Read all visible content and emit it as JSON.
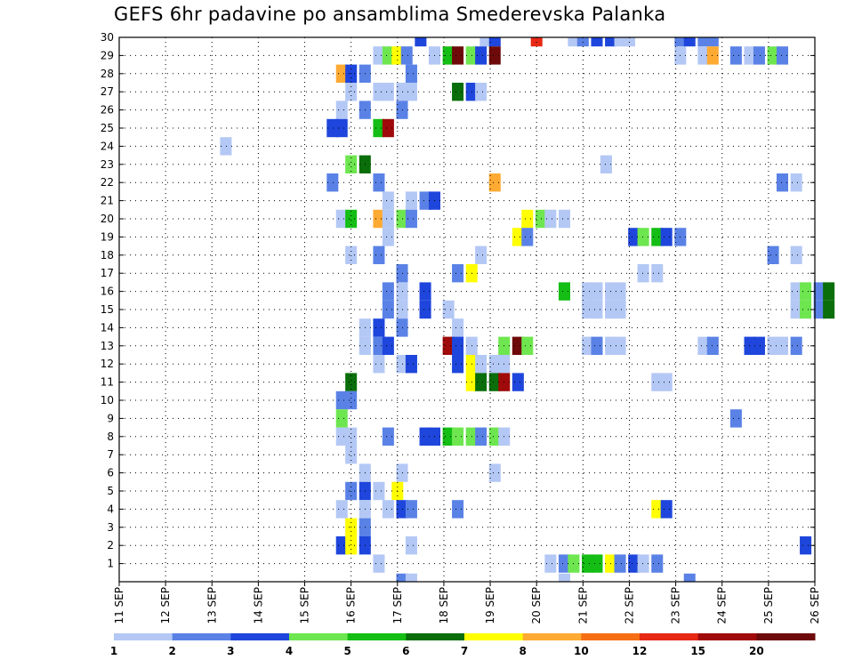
{
  "chart_data": {
    "type": "heatmap",
    "title": "GEFS 6hr padavine po ansamblima Smederevska Palanka",
    "xlabel": "",
    "ylabel": "",
    "x_tick_labels": [
      "11 SEP",
      "12 SEP",
      "13 SEP",
      "14 SEP",
      "15 SEP",
      "16 SEP",
      "17 SEP",
      "18 SEP",
      "19 SEP",
      "20 SEP",
      "21 SEP",
      "22 SEP",
      "23 SEP",
      "24 SEP",
      "25 SEP",
      "26 SEP"
    ],
    "y_tick_labels": [
      "1",
      "2",
      "3",
      "4",
      "5",
      "6",
      "7",
      "8",
      "9",
      "10",
      "11",
      "12",
      "13",
      "14",
      "15",
      "16",
      "17",
      "18",
      "19",
      "20",
      "21",
      "22",
      "23",
      "24",
      "25",
      "26",
      "27",
      "28",
      "29",
      "30"
    ],
    "x_range_days": [
      11,
      26
    ],
    "y_range": [
      0,
      30
    ],
    "grid": "dotted",
    "color_levels": [
      {
        "label": "1",
        "color": "#b4c8f5"
      },
      {
        "label": "2",
        "color": "#5a82e6"
      },
      {
        "label": "3",
        "color": "#1e46dc"
      },
      {
        "label": "4",
        "color": "#6ee650"
      },
      {
        "label": "5",
        "color": "#14be14"
      },
      {
        "label": "6",
        "color": "#0a6e0a"
      },
      {
        "label": "7",
        "color": "#ffff00"
      },
      {
        "label": "8",
        "color": "#ffaa32"
      },
      {
        "label": "10",
        "color": "#f56e14"
      },
      {
        "label": "12",
        "color": "#e62814"
      },
      {
        "label": "15",
        "color": "#a00a0a"
      },
      {
        "label": "20",
        "color": "#6e0a0a"
      }
    ],
    "level_keys": [
      "1",
      "2",
      "3",
      "4",
      "5",
      "6",
      "7",
      "8",
      "10",
      "12",
      "15",
      "20"
    ],
    "cells": [
      [
        30,
        17.5,
        3
      ],
      [
        30,
        18.9,
        1
      ],
      [
        30,
        19.1,
        3
      ],
      [
        30,
        20.0,
        12
      ],
      [
        30,
        20.8,
        1
      ],
      [
        30,
        21.0,
        2
      ],
      [
        30,
        21.3,
        3
      ],
      [
        30,
        21.6,
        3
      ],
      [
        30,
        21.8,
        1
      ],
      [
        30,
        22.0,
        1
      ],
      [
        30,
        23.1,
        2
      ],
      [
        30,
        23.3,
        3
      ],
      [
        30,
        23.6,
        2
      ],
      [
        30,
        23.8,
        2
      ],
      [
        29,
        16.6,
        1
      ],
      [
        29,
        16.8,
        4
      ],
      [
        29,
        17.0,
        7
      ],
      [
        29,
        17.2,
        2
      ],
      [
        29,
        17.8,
        1
      ],
      [
        29,
        18.1,
        5
      ],
      [
        29,
        18.3,
        20
      ],
      [
        29,
        18.6,
        4
      ],
      [
        29,
        18.8,
        3
      ],
      [
        29,
        19.1,
        20
      ],
      [
        29,
        23.1,
        1
      ],
      [
        29,
        23.6,
        1
      ],
      [
        29,
        23.8,
        8
      ],
      [
        29,
        24.3,
        2
      ],
      [
        29,
        24.6,
        1
      ],
      [
        29,
        24.8,
        2
      ],
      [
        29,
        25.1,
        4
      ],
      [
        29,
        25.3,
        2
      ],
      [
        28,
        15.8,
        8
      ],
      [
        28,
        16.0,
        3
      ],
      [
        28,
        16.3,
        2
      ],
      [
        28,
        17.3,
        2
      ],
      [
        27,
        16.0,
        1
      ],
      [
        27,
        16.6,
        1
      ],
      [
        27,
        16.8,
        1
      ],
      [
        27,
        17.1,
        1
      ],
      [
        27,
        17.3,
        1
      ],
      [
        27,
        18.3,
        6
      ],
      [
        27,
        18.6,
        3
      ],
      [
        27,
        18.8,
        1
      ],
      [
        26,
        15.8,
        1
      ],
      [
        26,
        16.3,
        2
      ],
      [
        26,
        17.1,
        2
      ],
      [
        25,
        15.6,
        3
      ],
      [
        25,
        15.8,
        3
      ],
      [
        25,
        16.6,
        5
      ],
      [
        25,
        16.8,
        15
      ],
      [
        24,
        13.3,
        1
      ],
      [
        23,
        16.0,
        4
      ],
      [
        23,
        16.3,
        6
      ],
      [
        23,
        21.5,
        1
      ],
      [
        22,
        15.6,
        2
      ],
      [
        22,
        16.6,
        2
      ],
      [
        22,
        19.1,
        8
      ],
      [
        22,
        25.3,
        2
      ],
      [
        22,
        25.6,
        1
      ],
      [
        21,
        16.8,
        1
      ],
      [
        21,
        17.3,
        1
      ],
      [
        21,
        17.6,
        2
      ],
      [
        21,
        17.8,
        3
      ],
      [
        20,
        15.8,
        1
      ],
      [
        20,
        16.0,
        5
      ],
      [
        20,
        16.6,
        8
      ],
      [
        20,
        16.8,
        1
      ],
      [
        20,
        17.1,
        4
      ],
      [
        20,
        17.3,
        2
      ],
      [
        20,
        19.8,
        7
      ],
      [
        20,
        20.1,
        4
      ],
      [
        20,
        20.3,
        1
      ],
      [
        20,
        20.6,
        1
      ],
      [
        19,
        16.8,
        1
      ],
      [
        19,
        19.6,
        7
      ],
      [
        19,
        19.8,
        2
      ],
      [
        19,
        22.1,
        3
      ],
      [
        19,
        22.3,
        4
      ],
      [
        19,
        22.6,
        5
      ],
      [
        19,
        22.8,
        3
      ],
      [
        19,
        23.1,
        2
      ],
      [
        18,
        16.0,
        1
      ],
      [
        18,
        16.6,
        2
      ],
      [
        18,
        18.8,
        1
      ],
      [
        18,
        25.1,
        2
      ],
      [
        18,
        25.6,
        1
      ],
      [
        17,
        17.1,
        2
      ],
      [
        17,
        18.3,
        2
      ],
      [
        17,
        18.6,
        7
      ],
      [
        17,
        22.3,
        1
      ],
      [
        17,
        22.6,
        1
      ],
      [
        16,
        16.8,
        2
      ],
      [
        16,
        17.1,
        1
      ],
      [
        16,
        17.6,
        3
      ],
      [
        16,
        20.6,
        5
      ],
      [
        16,
        21.1,
        1
      ],
      [
        16,
        21.3,
        1
      ],
      [
        16,
        21.6,
        1
      ],
      [
        16,
        21.8,
        1
      ],
      [
        16,
        25.6,
        1
      ],
      [
        16,
        25.8,
        4
      ],
      [
        16,
        26.1,
        2
      ],
      [
        16,
        26.3,
        6
      ],
      [
        15,
        16.8,
        2
      ],
      [
        15,
        17.1,
        1
      ],
      [
        15,
        17.6,
        3
      ],
      [
        15,
        18.1,
        1
      ],
      [
        15,
        21.1,
        1
      ],
      [
        15,
        21.3,
        1
      ],
      [
        15,
        21.6,
        1
      ],
      [
        15,
        21.8,
        1
      ],
      [
        15,
        25.6,
        1
      ],
      [
        15,
        25.8,
        4
      ],
      [
        15,
        26.1,
        2
      ],
      [
        15,
        26.3,
        6
      ],
      [
        14,
        16.3,
        1
      ],
      [
        14,
        16.6,
        3
      ],
      [
        14,
        17.1,
        2
      ],
      [
        14,
        18.3,
        1
      ],
      [
        13,
        16.3,
        1
      ],
      [
        13,
        16.6,
        2
      ],
      [
        13,
        16.8,
        3
      ],
      [
        13,
        18.1,
        15
      ],
      [
        13,
        18.3,
        3
      ],
      [
        13,
        18.6,
        1
      ],
      [
        13,
        19.3,
        4
      ],
      [
        13,
        19.6,
        20
      ],
      [
        13,
        19.8,
        4
      ],
      [
        13,
        21.1,
        1
      ],
      [
        13,
        21.3,
        2
      ],
      [
        13,
        21.6,
        1
      ],
      [
        13,
        21.8,
        1
      ],
      [
        13,
        23.6,
        1
      ],
      [
        13,
        23.8,
        2
      ],
      [
        13,
        24.6,
        3
      ],
      [
        13,
        24.8,
        3
      ],
      [
        13,
        25.1,
        1
      ],
      [
        13,
        25.3,
        1
      ],
      [
        13,
        25.6,
        2
      ],
      [
        12,
        16.6,
        1
      ],
      [
        12,
        17.1,
        1
      ],
      [
        12,
        17.3,
        3
      ],
      [
        12,
        18.3,
        3
      ],
      [
        12,
        18.6,
        7
      ],
      [
        12,
        18.8,
        1
      ],
      [
        12,
        19.1,
        1
      ],
      [
        12,
        19.3,
        1
      ],
      [
        11,
        16.0,
        6
      ],
      [
        11,
        18.6,
        7
      ],
      [
        11,
        18.8,
        6
      ],
      [
        11,
        19.1,
        6
      ],
      [
        11,
        19.3,
        15
      ],
      [
        11,
        19.6,
        3
      ],
      [
        11,
        22.6,
        1
      ],
      [
        11,
        22.8,
        1
      ],
      [
        10,
        15.8,
        2
      ],
      [
        10,
        16.0,
        2
      ],
      [
        9,
        15.8,
        4
      ],
      [
        9,
        24.3,
        2
      ],
      [
        8,
        15.8,
        1
      ],
      [
        8,
        16.0,
        1
      ],
      [
        8,
        16.8,
        2
      ],
      [
        8,
        17.6,
        3
      ],
      [
        8,
        17.8,
        3
      ],
      [
        8,
        18.1,
        5
      ],
      [
        8,
        18.3,
        4
      ],
      [
        8,
        18.6,
        4
      ],
      [
        8,
        18.8,
        2
      ],
      [
        8,
        19.1,
        4
      ],
      [
        8,
        19.3,
        1
      ],
      [
        7,
        16.0,
        1
      ],
      [
        6,
        16.3,
        1
      ],
      [
        6,
        17.1,
        1
      ],
      [
        6,
        19.1,
        1
      ],
      [
        5,
        16.0,
        2
      ],
      [
        5,
        16.3,
        3
      ],
      [
        5,
        16.6,
        1
      ],
      [
        5,
        17.0,
        7
      ],
      [
        4,
        15.8,
        1
      ],
      [
        4,
        16.3,
        1
      ],
      [
        4,
        16.8,
        1
      ],
      [
        4,
        17.1,
        3
      ],
      [
        4,
        17.3,
        2
      ],
      [
        4,
        18.3,
        2
      ],
      [
        4,
        22.6,
        7
      ],
      [
        4,
        22.8,
        3
      ],
      [
        3,
        16.0,
        7
      ],
      [
        3,
        16.3,
        2
      ],
      [
        2,
        15.8,
        3
      ],
      [
        2,
        16.0,
        7
      ],
      [
        2,
        16.3,
        3
      ],
      [
        2,
        17.3,
        1
      ],
      [
        2,
        25.8,
        3
      ],
      [
        1,
        16.6,
        1
      ],
      [
        1,
        20.3,
        1
      ],
      [
        1,
        20.6,
        2
      ],
      [
        1,
        20.8,
        4
      ],
      [
        1,
        21.1,
        5
      ],
      [
        1,
        21.3,
        5
      ],
      [
        1,
        21.6,
        7
      ],
      [
        1,
        21.8,
        2
      ],
      [
        1,
        22.1,
        3
      ],
      [
        1,
        22.3,
        1
      ],
      [
        1,
        22.6,
        2
      ],
      [
        0,
        17.1,
        2
      ],
      [
        0,
        17.3,
        1
      ],
      [
        0,
        20.6,
        1
      ],
      [
        0,
        23.3,
        2
      ]
    ]
  }
}
